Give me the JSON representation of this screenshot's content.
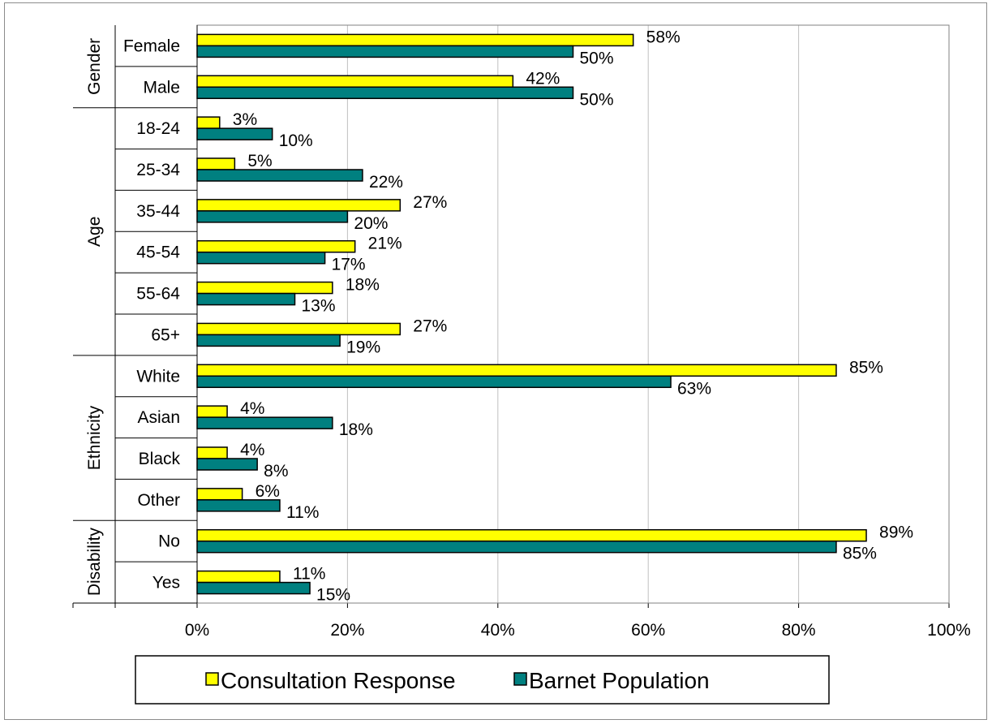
{
  "chart_data": {
    "type": "bar",
    "orientation": "horizontal",
    "groups": [
      {
        "name": "Gender",
        "categories": [
          "Female",
          "Male"
        ]
      },
      {
        "name": "Age",
        "categories": [
          "18-24",
          "25-34",
          "35-44",
          "45-54",
          "55-64",
          "65+"
        ]
      },
      {
        "name": "Ethnicity",
        "categories": [
          "White",
          "Asian",
          "Black",
          "Other"
        ]
      },
      {
        "name": "Disability",
        "categories": [
          "No",
          "Yes"
        ]
      }
    ],
    "categories": [
      "Female",
      "Male",
      "18-24",
      "25-34",
      "35-44",
      "45-54",
      "55-64",
      "65+",
      "White",
      "Asian",
      "Black",
      "Other",
      "No",
      "Yes"
    ],
    "series": [
      {
        "name": "Consultation Response",
        "color": "#ffff00",
        "values": [
          58,
          42,
          3,
          5,
          27,
          21,
          18,
          27,
          85,
          4,
          4,
          6,
          89,
          11
        ],
        "labels": [
          "58%",
          "42%",
          "3%",
          "5%",
          "27%",
          "21%",
          "18%",
          "27%",
          "85%",
          "4%",
          "4%",
          "6%",
          "89%",
          "11%"
        ]
      },
      {
        "name": "Barnet Population",
        "color": "#008080",
        "values": [
          50,
          50,
          10,
          22,
          20,
          17,
          13,
          19,
          63,
          18,
          8,
          11,
          85,
          15
        ],
        "labels": [
          "50%",
          "50%",
          "10%",
          "22%",
          "20%",
          "17%",
          "13%",
          "19%",
          "63%",
          "18%",
          "8%",
          "11%",
          "85%",
          "15%"
        ]
      }
    ],
    "xlim": [
      0,
      100
    ],
    "xticks": [
      "0%",
      "20%",
      "40%",
      "60%",
      "80%",
      "100%"
    ],
    "grid": true,
    "legend_position": "bottom"
  }
}
